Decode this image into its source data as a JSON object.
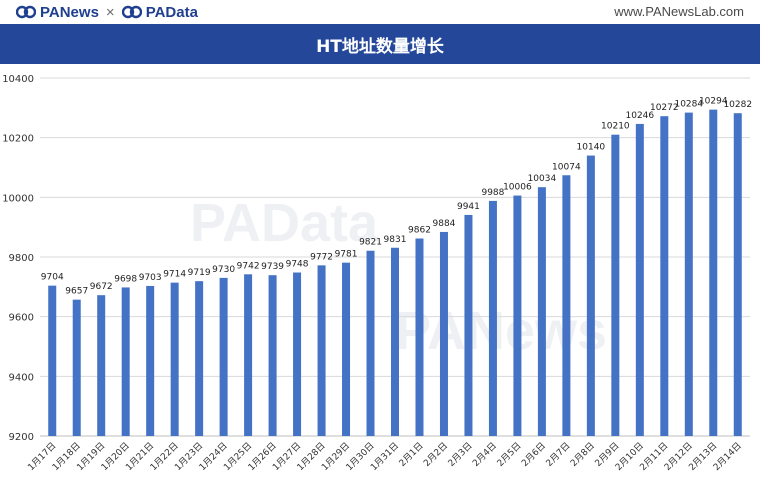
{
  "header": {
    "brand_left": "PANews",
    "brand_sep": "×",
    "brand_right": "PAData",
    "site": "www.PANewsLab.com",
    "title": "HT地址数量增长"
  },
  "watermarks": [
    "PAData",
    "PANews"
  ],
  "colors": {
    "bar": "#4472c4",
    "title_bg": "#24479a",
    "brand": "#1f3f8f"
  },
  "icons": [
    "panews-logo-icon",
    "padata-logo-icon"
  ],
  "chart_data": {
    "type": "bar",
    "categories": [
      "1月17日",
      "1月18日",
      "1月19日",
      "1月20日",
      "1月21日",
      "1月22日",
      "1月23日",
      "1月24日",
      "1月25日",
      "1月26日",
      "1月27日",
      "1月28日",
      "1月29日",
      "1月30日",
      "1月31日",
      "2月1日",
      "2月2日",
      "2月3日",
      "2月4日",
      "2月5日",
      "2月6日",
      "2月7日",
      "2月8日",
      "2月9日",
      "2月10日",
      "2月11日",
      "2月12日",
      "2月13日",
      "2月14日"
    ],
    "values": [
      9704,
      9657,
      9672,
      9698,
      9703,
      9714,
      9719,
      9730,
      9742,
      9739,
      9748,
      9772,
      9781,
      9821,
      9831,
      9862,
      9884,
      9941,
      9988,
      10006,
      10034,
      10074,
      10140,
      10210,
      10246,
      10272,
      10284,
      10294,
      10282
    ],
    "title": "HT地址数量增长",
    "xlabel": "",
    "ylabel": "",
    "ylim": [
      9200,
      10400
    ],
    "yticks": [
      9200,
      9400,
      9600,
      9800,
      10000,
      10200,
      10400
    ],
    "grid": true,
    "legend": "none"
  }
}
